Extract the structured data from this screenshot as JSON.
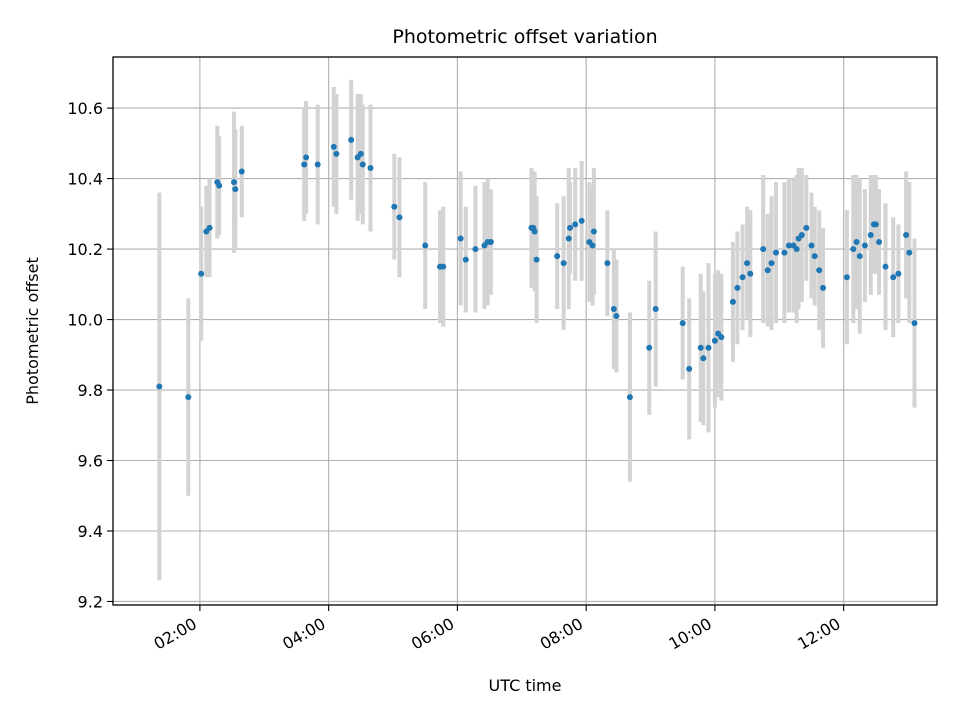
{
  "chart_data": {
    "type": "scatter",
    "title": "Photometric offset variation",
    "xlabel": "UTC time",
    "ylabel": "Photometric offset",
    "x_unit": "hours UTC",
    "xlim": [
      0.65,
      13.45
    ],
    "ylim": [
      9.19,
      10.745
    ],
    "x_ticks": [
      2,
      4,
      6,
      8,
      10,
      12
    ],
    "x_tick_labels": [
      "02:00",
      "04:00",
      "06:00",
      "08:00",
      "10:00",
      "12:00"
    ],
    "y_ticks": [
      9.2,
      9.4,
      9.6,
      9.8,
      10.0,
      10.2,
      10.4,
      10.6
    ],
    "y_tick_labels": [
      "9.2",
      "9.4",
      "9.6",
      "9.8",
      "10.0",
      "10.2",
      "10.4",
      "10.6"
    ],
    "grid": true,
    "colors": {
      "points": "#1f77b4",
      "error_bars": "#d3d3d3",
      "grid": "#b0b0b0",
      "frame": "#000000"
    },
    "series": [
      {
        "points": [
          [
            1.37,
            9.81,
            0.55
          ],
          [
            1.82,
            9.78,
            0.28
          ],
          [
            2.02,
            10.13,
            0.19
          ],
          [
            2.1,
            10.25,
            0.13
          ],
          [
            2.15,
            10.26,
            0.14
          ],
          [
            2.27,
            10.39,
            0.16
          ],
          [
            2.3,
            10.38,
            0.14
          ],
          [
            2.53,
            10.39,
            0.2
          ],
          [
            2.55,
            10.37,
            0.17
          ],
          [
            2.65,
            10.42,
            0.13
          ],
          [
            3.62,
            10.44,
            0.16
          ],
          [
            3.65,
            10.46,
            0.16
          ],
          [
            3.83,
            10.44,
            0.17
          ],
          [
            4.08,
            10.49,
            0.17
          ],
          [
            4.12,
            10.47,
            0.17
          ],
          [
            4.35,
            10.51,
            0.17
          ],
          [
            4.45,
            10.46,
            0.18
          ],
          [
            4.5,
            10.47,
            0.17
          ],
          [
            4.53,
            10.44,
            0.17
          ],
          [
            4.65,
            10.43,
            0.18
          ],
          [
            5.02,
            10.32,
            0.15
          ],
          [
            5.1,
            10.29,
            0.17
          ],
          [
            5.5,
            10.21,
            0.18
          ],
          [
            5.73,
            10.15,
            0.16
          ],
          [
            5.78,
            10.15,
            0.17
          ],
          [
            6.05,
            10.23,
            0.19
          ],
          [
            6.13,
            10.17,
            0.15
          ],
          [
            6.28,
            10.2,
            0.18
          ],
          [
            6.42,
            10.21,
            0.18
          ],
          [
            6.47,
            10.22,
            0.18
          ],
          [
            6.52,
            10.22,
            0.15
          ],
          [
            7.15,
            10.26,
            0.17
          ],
          [
            7.18,
            10.26,
            0.15
          ],
          [
            7.2,
            10.25,
            0.17
          ],
          [
            7.23,
            10.17,
            0.18
          ],
          [
            7.55,
            10.18,
            0.15
          ],
          [
            7.65,
            10.16,
            0.19
          ],
          [
            7.73,
            10.23,
            0.2
          ],
          [
            7.75,
            10.26,
            0.13
          ],
          [
            7.83,
            10.27,
            0.16
          ],
          [
            7.93,
            10.28,
            0.17
          ],
          [
            8.05,
            10.22,
            0.17
          ],
          [
            8.1,
            10.21,
            0.17
          ],
          [
            8.12,
            10.25,
            0.18
          ],
          [
            8.33,
            10.16,
            0.15
          ],
          [
            8.43,
            10.03,
            0.17
          ],
          [
            8.47,
            10.01,
            0.16
          ],
          [
            8.68,
            9.78,
            0.24
          ],
          [
            8.98,
            9.92,
            0.19
          ],
          [
            9.08,
            10.03,
            0.22
          ],
          [
            9.5,
            9.99,
            0.16
          ],
          [
            9.6,
            9.86,
            0.2
          ],
          [
            9.78,
            9.92,
            0.21
          ],
          [
            9.82,
            9.89,
            0.19
          ],
          [
            9.9,
            9.92,
            0.24
          ],
          [
            10.0,
            9.94,
            0.19
          ],
          [
            10.05,
            9.96,
            0.18
          ],
          [
            10.1,
            9.95,
            0.18
          ],
          [
            10.28,
            10.05,
            0.17
          ],
          [
            10.35,
            10.09,
            0.16
          ],
          [
            10.43,
            10.12,
            0.15
          ],
          [
            10.5,
            10.16,
            0.16
          ],
          [
            10.55,
            10.13,
            0.18
          ],
          [
            10.75,
            10.2,
            0.21
          ],
          [
            10.82,
            10.14,
            0.16
          ],
          [
            10.88,
            10.16,
            0.19
          ],
          [
            10.95,
            10.19,
            0.2
          ],
          [
            11.08,
            10.19,
            0.2
          ],
          [
            11.15,
            10.21,
            0.19
          ],
          [
            11.22,
            10.21,
            0.19
          ],
          [
            11.27,
            10.2,
            0.21
          ],
          [
            11.3,
            10.23,
            0.2
          ],
          [
            11.35,
            10.24,
            0.19
          ],
          [
            11.42,
            10.26,
            0.15
          ],
          [
            11.5,
            10.21,
            0.15
          ],
          [
            11.55,
            10.18,
            0.14
          ],
          [
            11.62,
            10.14,
            0.17
          ],
          [
            11.68,
            10.09,
            0.17
          ],
          [
            12.05,
            10.12,
            0.19
          ],
          [
            12.15,
            10.2,
            0.21
          ],
          [
            12.2,
            10.22,
            0.19
          ],
          [
            12.25,
            10.18,
            0.22
          ],
          [
            12.33,
            10.21,
            0.16
          ],
          [
            12.42,
            10.24,
            0.17
          ],
          [
            12.47,
            10.27,
            0.14
          ],
          [
            12.5,
            10.27,
            0.14
          ],
          [
            12.55,
            10.22,
            0.15
          ],
          [
            12.65,
            10.15,
            0.18
          ],
          [
            12.77,
            10.12,
            0.17
          ],
          [
            12.85,
            10.13,
            0.14
          ],
          [
            12.97,
            10.24,
            0.18
          ],
          [
            13.02,
            10.19,
            0.2
          ],
          [
            13.1,
            9.99,
            0.24
          ]
        ]
      }
    ]
  }
}
